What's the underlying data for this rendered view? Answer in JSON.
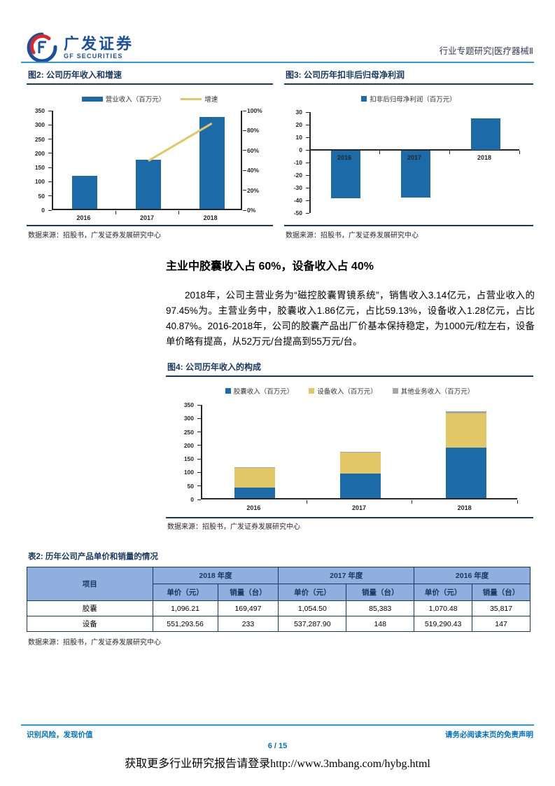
{
  "page": {
    "header": {
      "logo_cn": "广发证券",
      "logo_en": "GF SECURITIES",
      "right_text": "行业专题研究|医疗器械Ⅱ"
    },
    "heading": "主业中胶囊收入占 60%，设备收入占 40%",
    "paragraph": "2018年，公司主营业务为“磁控胶囊胃镜系统”，销售收入3.14亿元，占营业收入的97.45%为。主营业务中，胶囊收入1.86亿元，占比59.13%，设备收入1.28亿元，占比40.87%。2016-2018年，公司的胶囊产品出厂价基本保持稳定，为1000元/粒左右，设备单价略有提高，从52万元/台提高到55万元/台。",
    "source_note": "数据来源：招股书，广发证券发展研究中心",
    "footer": {
      "left": "识别风险，发现价值",
      "right": "请务必阅读末页的免责声明",
      "page_number": "6 / 15",
      "promo": "获取更多行业研究报告请登录http://www.3mbang.com/hybg.html"
    }
  },
  "chart_data": [
    {
      "id": "fig2",
      "type": "bar",
      "title": "图2: 公司历年收入和增速",
      "categories": [
        "2016",
        "2017",
        "2018"
      ],
      "series": [
        {
          "name": "营业收入（百万元）",
          "kind": "bar",
          "swatch": "rect",
          "axis": "left",
          "color": "#1C6BA8",
          "values": [
            115,
            172,
            322
          ]
        },
        {
          "name": "增速",
          "kind": "line",
          "swatch": "line",
          "axis": "right",
          "color": "#E2C766",
          "values": [
            null,
            49.6,
            87.2
          ]
        }
      ],
      "left_axis": {
        "min": 0,
        "max": 350,
        "step": 50
      },
      "right_axis": {
        "min": 0,
        "max": 100,
        "step": 20,
        "suffix": "%"
      },
      "legend_position": "top",
      "grid": false
    },
    {
      "id": "fig3",
      "type": "bar",
      "title": "图3: 公司历年扣非后归母净利润",
      "categories": [
        "2016",
        "2017",
        "2018"
      ],
      "series": [
        {
          "name": "扣非后归母净利润（百万元）",
          "kind": "bar",
          "swatch": "square",
          "axis": "left",
          "color": "#1C6BA8",
          "values": [
            -38,
            -37,
            25
          ]
        }
      ],
      "left_axis": {
        "min": -50,
        "max": 30,
        "step": 10
      },
      "legend_position": "top",
      "grid": false
    },
    {
      "id": "fig4",
      "type": "stacked-bar",
      "title": "图4: 公司历年收入的构成",
      "categories": [
        "2016",
        "2017",
        "2018"
      ],
      "series": [
        {
          "name": "胶囊收入（百万元）",
          "kind": "bar",
          "swatch": "square",
          "color": "#1C6BA8",
          "values": [
            38,
            90,
            186
          ]
        },
        {
          "name": "设备收入（百万元）",
          "kind": "bar",
          "swatch": "square",
          "color": "#E2C766",
          "values": [
            76,
            80,
            128
          ]
        },
        {
          "name": "其他业务收入（百万元）",
          "kind": "bar",
          "swatch": "square",
          "color": "#A6A6A6",
          "values": [
            1,
            2,
            8
          ]
        }
      ],
      "left_axis": {
        "min": 0,
        "max": 350,
        "step": 50
      },
      "legend_position": "top",
      "grid": false
    },
    {
      "id": "table2",
      "type": "table",
      "title": "表2: 历年公司产品单价和销量的情况",
      "item_header": "项目",
      "year_groups": [
        "2018 年度",
        "2017 年度",
        "2016 年度"
      ],
      "sub_headers": [
        "单价（元）",
        "销量（台）"
      ],
      "rows": [
        [
          "胶囊",
          "1,096.21",
          "169,497",
          "1,054.50",
          "85,383",
          "1,070.48",
          "35,817"
        ],
        [
          "设备",
          "551,293.56",
          "233",
          "537,287.90",
          "148",
          "519,290.43",
          "147"
        ]
      ]
    }
  ],
  "colors": {
    "bar_blue": "#1C6BA8",
    "gold": "#E2C766",
    "gray": "#A6A6A6",
    "navy": "#17375E",
    "table_header_bg": "#8FAFDE",
    "footer_blue": "#0070C0",
    "rule_blue": "#2E9BD6"
  }
}
